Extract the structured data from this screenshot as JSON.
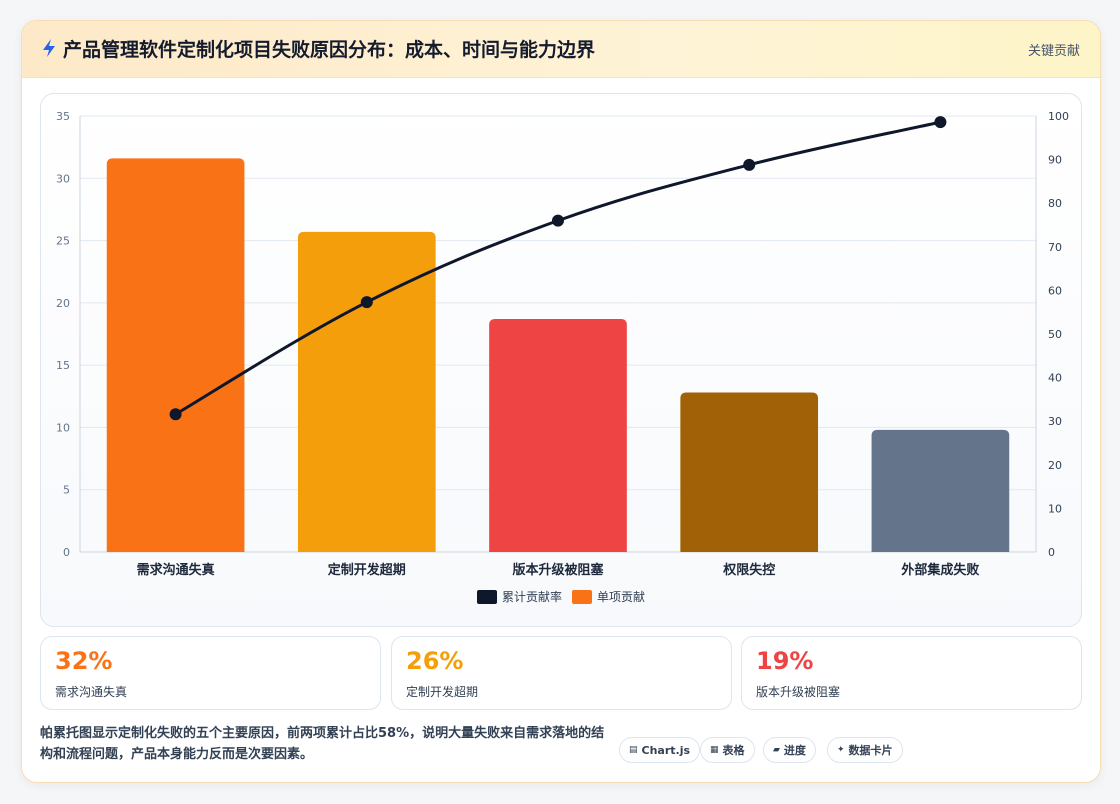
{
  "header": {
    "title": "产品管理软件定制化项目失败原因分布：成本、时间与能力边界",
    "tag": "关键贡献"
  },
  "chart_data": {
    "type": "bar",
    "categories": [
      "需求沟通失真",
      "定制开发超期",
      "版本升级被阻塞",
      "权限失控",
      "外部集成失败"
    ],
    "series": [
      {
        "name": "单项贡献",
        "type": "bar",
        "axis": "left",
        "values": [
          31.6,
          25.7,
          18.7,
          12.8,
          9.8
        ],
        "colors": [
          "#f97316",
          "#f59e0b",
          "#ef4444",
          "#a16207",
          "#64748b"
        ]
      },
      {
        "name": "累计贡献率",
        "type": "line",
        "axis": "right",
        "values": [
          31.6,
          57.3,
          76.0,
          88.8,
          98.6
        ],
        "color": "#0f172a"
      }
    ],
    "y_left": {
      "min": 0,
      "max": 35,
      "ticks": [
        0,
        5,
        10,
        15,
        20,
        25,
        30,
        35
      ]
    },
    "y_right": {
      "min": 0,
      "max": 100,
      "ticks": [
        0,
        10,
        20,
        30,
        40,
        50,
        60,
        70,
        80,
        90,
        100
      ]
    },
    "legend": [
      {
        "name": "累计贡献率",
        "color": "#0f172a"
      },
      {
        "name": "单项贡献",
        "color": "#f97316"
      }
    ],
    "legend_position": "bottom",
    "grid": true
  },
  "stats": [
    {
      "value": "32%",
      "label": "需求沟通失真",
      "color": "#f97316"
    },
    {
      "value": "26%",
      "label": "定制开发超期",
      "color": "#f59e0b"
    },
    {
      "value": "19%",
      "label": "版本升级被阻塞",
      "color": "#ef4444"
    }
  ],
  "summary": "帕累托图显示定制化失败的五个主要原因，前两项累计占比58%，说明大量失败来自需求落地的结构和流程问题，产品本身能力反而是次要因素。",
  "badges": [
    {
      "icon": "▤",
      "label": "Chart.js"
    },
    {
      "icon": "▦",
      "label": "表格"
    },
    {
      "icon": "▰",
      "label": "进度"
    },
    {
      "icon": "✦",
      "label": "数据卡片"
    }
  ]
}
